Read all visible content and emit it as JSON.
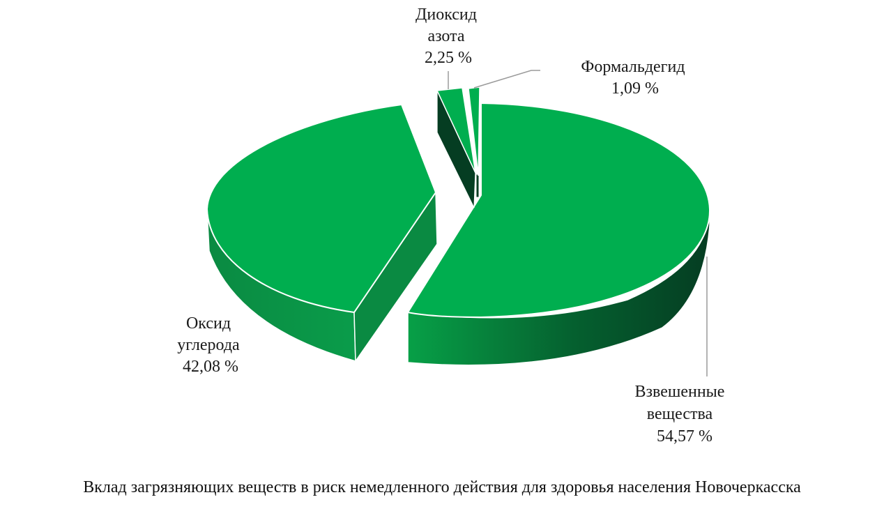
{
  "chart_data": {
    "type": "pie",
    "three_d": true,
    "exploded": true,
    "title": "",
    "slices": [
      {
        "name_lines": [
          "Взвешенные",
          "вещества"
        ],
        "value_label": "54,57 %",
        "value": 54.57
      },
      {
        "name_lines": [
          "Оксид",
          "углерода"
        ],
        "value_label": "42,08 %",
        "value": 42.08
      },
      {
        "name_lines": [
          "Диоксид",
          "азота"
        ],
        "value_label": "2,25 %",
        "value": 2.25
      },
      {
        "name_lines": [
          "Формальдегид"
        ],
        "value_label": "1,09 %",
        "value": 1.09
      }
    ],
    "colors": {
      "top": "#00ae4f",
      "side_light": "#0a8a42",
      "side_dark": "#06492a",
      "edge": "#ffffff",
      "leader": "#9a9a9a"
    }
  },
  "caption": "Вклад загрязняющих веществ в риск немедленного действия для здоровья населения Новочеркасска"
}
